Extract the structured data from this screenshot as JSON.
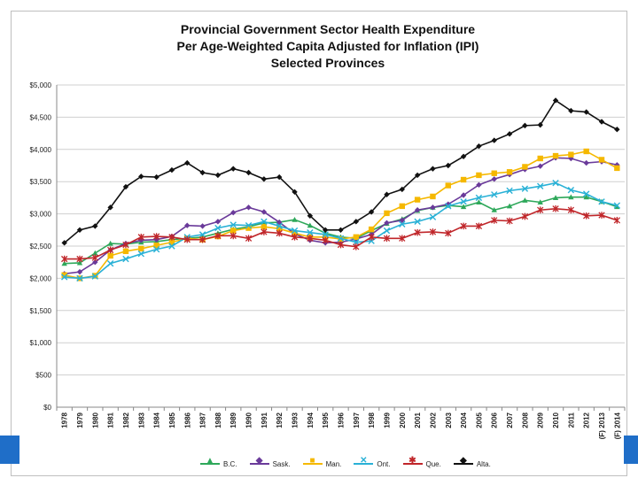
{
  "chart_data": {
    "type": "line",
    "title": [
      "Provincial Government Sector Health Expenditure",
      "Per Age-Weighted Capita Adjusted for Inflation (IPI)",
      "Selected Provinces"
    ],
    "xlabel": "",
    "ylabel": "",
    "ylim": [
      0,
      5000
    ],
    "yticks": [
      {
        "value": 0,
        "label": "$0"
      },
      {
        "value": 500,
        "label": "$500"
      },
      {
        "value": 1000,
        "label": "$1,000"
      },
      {
        "value": 1500,
        "label": "$1,500"
      },
      {
        "value": 2000,
        "label": "$2,000"
      },
      {
        "value": 2500,
        "label": "$2,500"
      },
      {
        "value": 3000,
        "label": "$3,000"
      },
      {
        "value": 3500,
        "label": "$3,500"
      },
      {
        "value": 4000,
        "label": "$4,000"
      },
      {
        "value": 4500,
        "label": "$4,500"
      },
      {
        "value": 5000,
        "label": "$5,000"
      }
    ],
    "grid": true,
    "legend_position": "bottom",
    "categories": [
      "1978",
      "1979",
      "1980",
      "1981",
      "1982",
      "1983",
      "1984",
      "1985",
      "1986",
      "1987",
      "1988",
      "1989",
      "1990",
      "1991",
      "1992",
      "1993",
      "1994",
      "1995",
      "1996",
      "1997",
      "1998",
      "1999",
      "2000",
      "2001",
      "2002",
      "2003",
      "2004",
      "2005",
      "2006",
      "2007",
      "2008",
      "2009",
      "2010",
      "2011",
      "2012",
      "(F) 2013",
      "(F) 2014"
    ],
    "series": [
      {
        "name": "B.C.",
        "color": "#2ea85a",
        "marker": "triangle",
        "values": [
          2230,
          2240,
          2390,
          2540,
          2530,
          2560,
          2570,
          2600,
          2620,
          2640,
          2700,
          2760,
          2800,
          2860,
          2870,
          2910,
          2820,
          2700,
          2640,
          2620,
          2740,
          2850,
          2920,
          3050,
          3100,
          3130,
          3110,
          3180,
          3060,
          3120,
          3210,
          3180,
          3250,
          3260,
          3260,
          3190,
          3110
        ]
      },
      {
        "name": "Sask.",
        "color": "#6a3a9a",
        "marker": "diamond",
        "values": [
          2070,
          2100,
          2250,
          2440,
          2540,
          2590,
          2600,
          2650,
          2820,
          2810,
          2880,
          3020,
          3100,
          3030,
          2870,
          2690,
          2590,
          2550,
          2560,
          2610,
          2680,
          2860,
          2900,
          3060,
          3100,
          3150,
          3290,
          3450,
          3540,
          3610,
          3690,
          3740,
          3870,
          3860,
          3790,
          3810,
          3760
        ]
      },
      {
        "name": "Man.",
        "color": "#f5b800",
        "marker": "square",
        "values": [
          2050,
          2000,
          2040,
          2350,
          2420,
          2460,
          2510,
          2560,
          2620,
          2600,
          2650,
          2740,
          2780,
          2800,
          2770,
          2700,
          2640,
          2640,
          2610,
          2640,
          2760,
          3010,
          3120,
          3220,
          3270,
          3440,
          3530,
          3600,
          3630,
          3650,
          3730,
          3860,
          3900,
          3920,
          3970,
          3840,
          3710
        ]
      },
      {
        "name": "Ont.",
        "color": "#29b1d6",
        "marker": "x",
        "values": [
          2020,
          2000,
          2030,
          2230,
          2300,
          2380,
          2450,
          2500,
          2640,
          2680,
          2780,
          2830,
          2820,
          2880,
          2810,
          2740,
          2710,
          2680,
          2620,
          2560,
          2580,
          2740,
          2840,
          2880,
          2950,
          3120,
          3190,
          3250,
          3300,
          3360,
          3390,
          3430,
          3480,
          3370,
          3310,
          3190,
          3130
        ]
      },
      {
        "name": "Que.",
        "color": "#c0262a",
        "marker": "star",
        "values": [
          2300,
          2300,
          2320,
          2440,
          2520,
          2640,
          2650,
          2640,
          2600,
          2600,
          2660,
          2660,
          2620,
          2720,
          2700,
          2640,
          2620,
          2590,
          2520,
          2490,
          2640,
          2620,
          2620,
          2710,
          2720,
          2700,
          2810,
          2810,
          2900,
          2890,
          2960,
          3060,
          3080,
          3060,
          2970,
          2980,
          2900
        ]
      },
      {
        "name": "Alta.",
        "color": "#111111",
        "marker": "diamond",
        "values": [
          2550,
          2750,
          2810,
          3100,
          3420,
          3580,
          3570,
          3680,
          3790,
          3640,
          3600,
          3700,
          3640,
          3540,
          3570,
          3340,
          2970,
          2750,
          2750,
          2880,
          3030,
          3300,
          3380,
          3600,
          3700,
          3750,
          3890,
          4050,
          4140,
          4240,
          4370,
          4380,
          4760,
          4600,
          4580,
          4430,
          4310
        ]
      }
    ]
  }
}
